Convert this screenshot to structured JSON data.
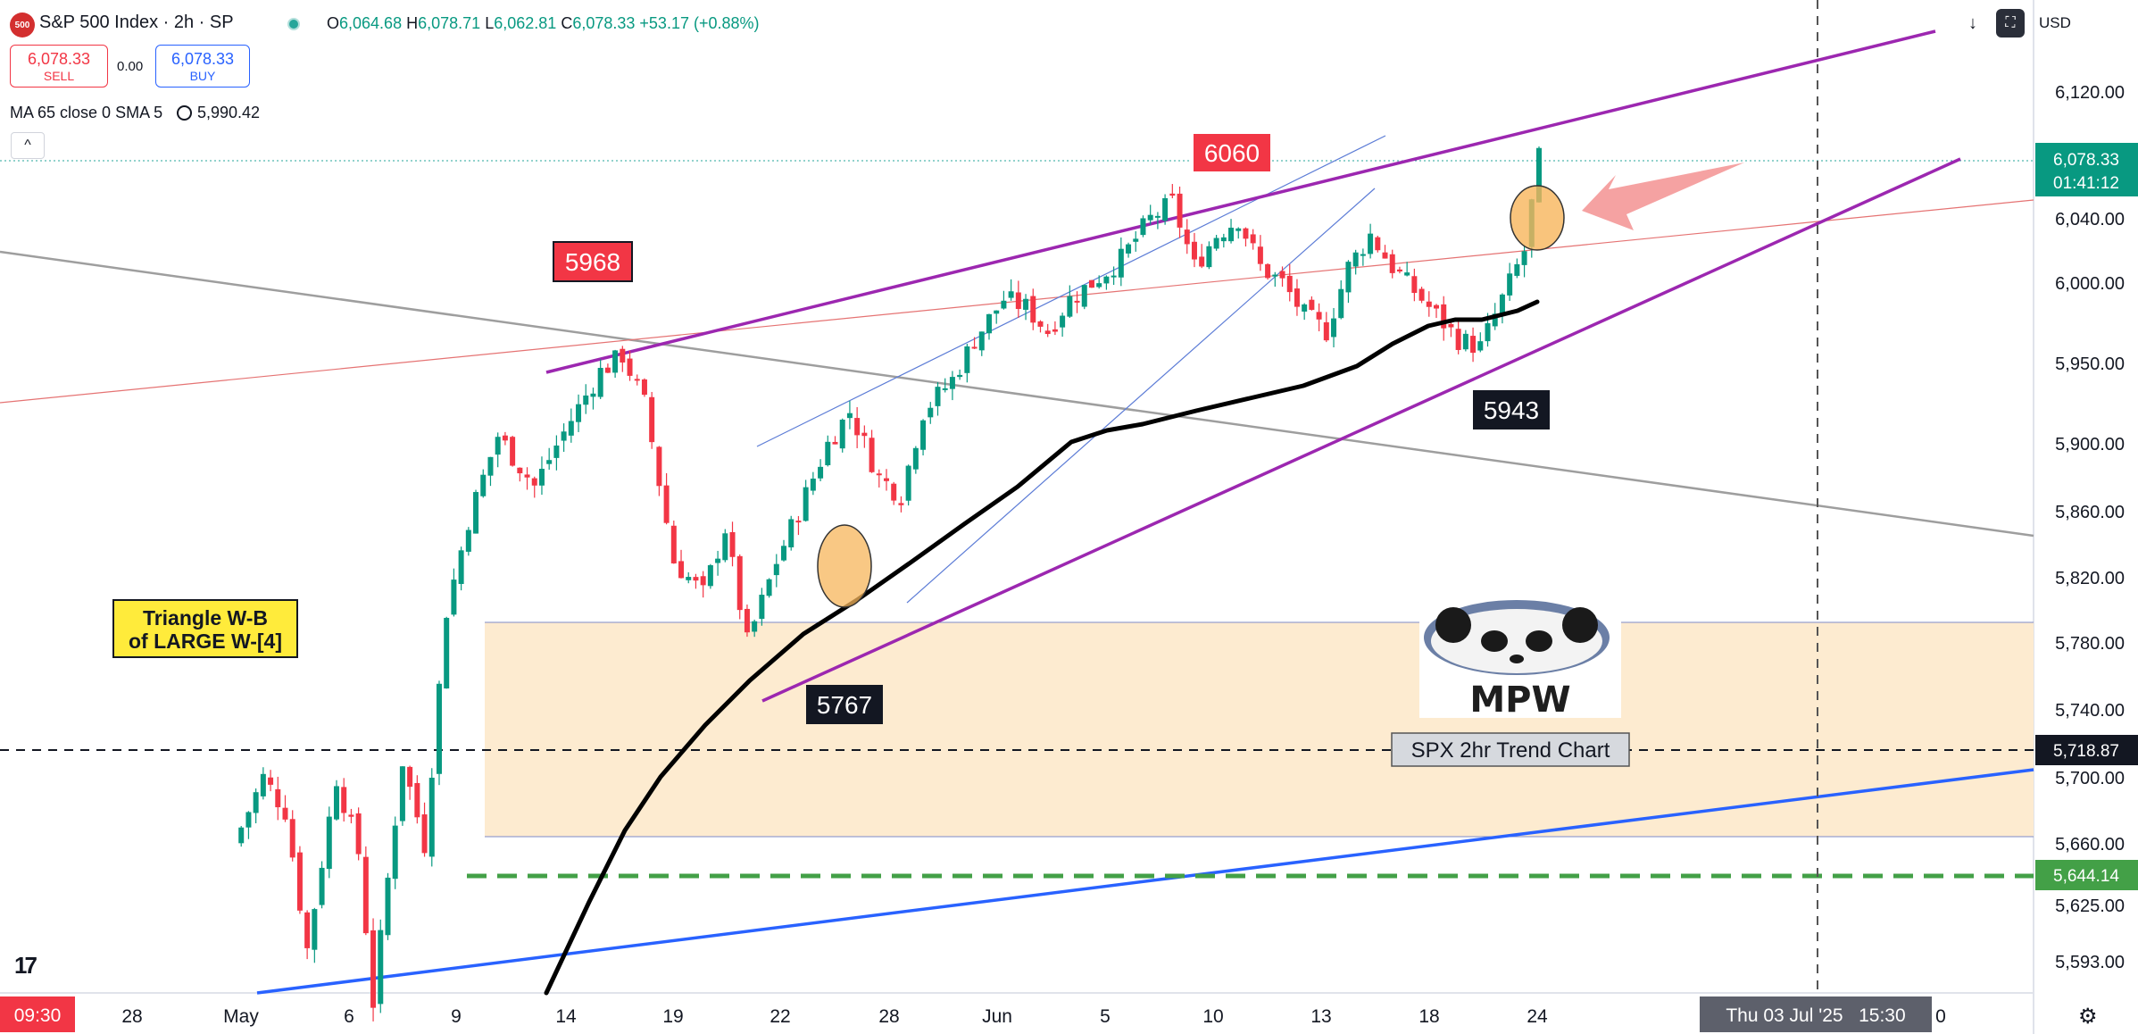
{
  "header": {
    "symbol_badge": "500",
    "title": "S&P 500 Index · 2h · SP",
    "ohlc": {
      "o_label": "O",
      "o": "6,064.68",
      "h_label": "H",
      "h": "6,078.71",
      "l_label": "L",
      "l": "6,062.81",
      "c_label": "C",
      "c": "6,078.33",
      "change": "+53.17 (+0.88%)"
    },
    "sell": {
      "price": "6,078.33",
      "label": "SELL"
    },
    "spread": "0.00",
    "buy": {
      "price": "6,078.33",
      "label": "BUY"
    },
    "indicator": {
      "label": "MA 65 close 0 SMA 5",
      "value": "5,990.42"
    },
    "collapse_icon": "chevron-up-icon"
  },
  "toolbar": {
    "download_icon": "↓",
    "fullscreen_icon": "⛶",
    "currency": "USD"
  },
  "colors": {
    "up": "#089981",
    "down": "#f23645",
    "channel": "#9c27b0",
    "ma": "#000000",
    "support": "#2962ff",
    "green_dash": "#43a047",
    "zone": "#fdebd0"
  },
  "chart_data": {
    "type": "candlestick",
    "title": "SPX 2hr Trend Chart",
    "y_ticks": [
      "6,120.00",
      "6,040.00",
      "6,000.00",
      "5,950.00",
      "5,900.00",
      "5,860.00",
      "5,820.00",
      "5,780.00",
      "5,740.00",
      "5,700.00",
      "5,660.00",
      "5,625.00",
      "5,593.00"
    ],
    "x_ticks": [
      "28",
      "May",
      "6",
      "9",
      "14",
      "19",
      "22",
      "28",
      "Jun",
      "5",
      "10",
      "13",
      "18",
      "24",
      "0"
    ],
    "price_tags": {
      "last": {
        "value": "6,078.33",
        "countdown": "01:41:12"
      },
      "black_line": "5,718.87",
      "green_line": "5,644.14"
    },
    "time_tags": {
      "left": "09:30",
      "crosshair": "Thu 03 Jul '25   15:30"
    },
    "annotations": [
      {
        "label": "6060",
        "style": "red"
      },
      {
        "label": "5968",
        "style": "red"
      },
      {
        "label": "5943",
        "style": "black"
      },
      {
        "label": "5767",
        "style": "black"
      },
      {
        "label": "Triangle W-B\nof LARGE W-[4]",
        "style": "yellow"
      }
    ],
    "logo_text": "MPW"
  }
}
